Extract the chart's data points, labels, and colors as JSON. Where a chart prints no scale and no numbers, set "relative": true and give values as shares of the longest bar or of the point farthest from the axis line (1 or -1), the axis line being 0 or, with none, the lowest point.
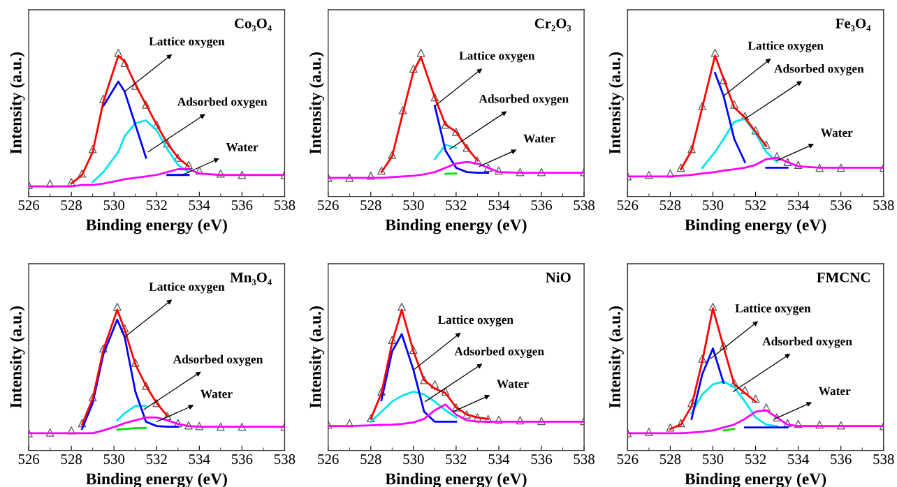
{
  "chart_data": [
    {
      "type": "line",
      "title": "Co₃O₄",
      "xlabel": "Binding energy (eV)",
      "ylabel": "Intensity (a.u.)",
      "relative": true,
      "tick_labels": "x",
      "xlim": [
        526,
        538
      ],
      "xticks": [
        526,
        528,
        530,
        532,
        534,
        536,
        538
      ],
      "grid": false,
      "legend": false,
      "x": [
        526,
        527,
        528,
        528.5,
        529,
        529.5,
        530.2,
        530.5,
        531,
        531.5,
        532,
        532.5,
        533,
        533.5,
        534,
        535,
        536,
        538
      ],
      "series": [
        {
          "type": "scatter",
          "marker": "triangle",
          "color": "#555555",
          "values": [
            0.08,
            0.09,
            0.1,
            0.16,
            0.33,
            0.68,
            1.0,
            0.93,
            0.77,
            0.64,
            0.5,
            0.37,
            0.27,
            0.22,
            0.18,
            0.16,
            0.15,
            0.15
          ]
        },
        {
          "color": "#00e5ee",
          "values": [
            null,
            null,
            null,
            null,
            0.1,
            0.17,
            0.31,
            0.42,
            0.51,
            0.53,
            0.46,
            0.33,
            0.22,
            0.17,
            null,
            null,
            null,
            null
          ]
        },
        {
          "color": "#0000ff",
          "values": [
            null,
            null,
            null,
            null,
            null,
            0.63,
            0.8,
            0.73,
            0.5,
            0.27,
            null,
            0.15,
            0.15,
            0.15,
            null,
            null,
            null,
            null
          ]
        },
        {
          "color": "#ff0000",
          "values": [
            null,
            null,
            0.09,
            0.15,
            0.31,
            0.66,
            0.98,
            0.94,
            0.78,
            0.64,
            0.5,
            0.37,
            0.27,
            0.21,
            null,
            null,
            null,
            null
          ]
        },
        {
          "color": "#ff00ff",
          "values": [
            0.07,
            0.07,
            0.07,
            0.08,
            0.08,
            0.09,
            0.11,
            0.12,
            0.13,
            0.14,
            0.15,
            0.17,
            0.19,
            0.19,
            0.16,
            0.15,
            0.15,
            0.15
          ]
        }
      ],
      "annotations": [
        {
          "text": "Lattice oxygen",
          "x": 530.5,
          "y": 0.73
        },
        {
          "text": "Adsorbed oxygen",
          "x": 531.6,
          "y": 0.31
        },
        {
          "text": "Water",
          "x": 533.2,
          "y": 0.15
        }
      ]
    },
    {
      "type": "line",
      "title": "Cr₂O₃",
      "xlabel": "Binding energy (eV)",
      "ylabel": "Intensity (a.u.)",
      "relative": true,
      "tick_labels": "x",
      "xlim": [
        526,
        538
      ],
      "xticks": [
        526,
        528,
        530,
        532,
        534,
        536,
        538
      ],
      "grid": false,
      "legend": false,
      "x": [
        526,
        527,
        528,
        528.5,
        529,
        529.5,
        530,
        530.35,
        531,
        531.5,
        532,
        532.5,
        533,
        533.5,
        534,
        535,
        536,
        538
      ],
      "series": [
        {
          "type": "scatter",
          "marker": "triangle",
          "color": "#555555",
          "values": [
            0.13,
            0.13,
            0.145,
            0.18,
            0.29,
            0.6,
            0.89,
            1.0,
            0.69,
            0.5,
            0.45,
            0.34,
            0.25,
            0.2,
            0.18,
            0.17,
            0.17,
            0.17
          ]
        },
        {
          "color": "#00dd00",
          "values": [
            null,
            null,
            null,
            null,
            null,
            null,
            null,
            null,
            null,
            0.158,
            0.16,
            null,
            null,
            null,
            null,
            null,
            null,
            null
          ]
        },
        {
          "color": "#00e5ee",
          "values": [
            null,
            null,
            null,
            null,
            null,
            null,
            null,
            null,
            0.26,
            0.36,
            0.34,
            null,
            null,
            null,
            null,
            null,
            null,
            null
          ]
        },
        {
          "color": "#0000ff",
          "values": [
            null,
            null,
            null,
            null,
            null,
            null,
            null,
            null,
            0.63,
            0.32,
            0.2,
            0.17,
            0.165,
            0.165,
            null,
            null,
            null,
            null
          ]
        },
        {
          "color": "#ff0000",
          "values": [
            null,
            null,
            null,
            0.17,
            0.28,
            0.58,
            0.87,
            0.97,
            0.69,
            0.5,
            0.45,
            0.34,
            0.25,
            null,
            null,
            null,
            null,
            null
          ]
        },
        {
          "color": "#ff00ff",
          "values": [
            0.13,
            0.13,
            0.13,
            0.13,
            0.135,
            0.14,
            0.145,
            0.15,
            0.17,
            0.2,
            0.23,
            0.24,
            0.23,
            0.2,
            0.17,
            0.165,
            0.165,
            0.165
          ]
        }
      ],
      "annotations": [
        {
          "text": "Lattice oxygen",
          "x": 531,
          "y": 0.63
        },
        {
          "text": "Adsorbed oxygen",
          "x": 531.7,
          "y": 0.33
        },
        {
          "text": "Water",
          "x": 533.1,
          "y": 0.21
        }
      ]
    },
    {
      "type": "line",
      "title": "Fe₃O₄",
      "xlabel": "Binding energy (eV)",
      "ylabel": "Intensity (a.u.)",
      "relative": true,
      "tick_labels": "x",
      "xlim": [
        526,
        538
      ],
      "xticks": [
        526,
        528,
        530,
        532,
        534,
        536,
        538
      ],
      "grid": false,
      "legend": false,
      "x": [
        526,
        527,
        528,
        528.5,
        529,
        529.5,
        530.1,
        530.5,
        531,
        531.5,
        532,
        532.5,
        533,
        533.5,
        534,
        535,
        536,
        538
      ],
      "series": [
        {
          "type": "scatter",
          "marker": "triangle",
          "color": "#555555",
          "values": [
            0.14,
            0.15,
            0.16,
            0.2,
            0.33,
            0.63,
            1.0,
            0.81,
            0.64,
            0.56,
            0.46,
            0.36,
            0.28,
            0.24,
            0.22,
            0.2,
            0.2,
            0.2
          ]
        },
        {
          "color": "#00e5ee",
          "values": [
            null,
            null,
            null,
            null,
            null,
            0.2,
            0.31,
            0.4,
            0.52,
            0.54,
            0.44,
            0.31,
            0.24,
            null,
            null,
            null,
            null,
            null
          ]
        },
        {
          "color": "#0000ff",
          "values": [
            null,
            null,
            null,
            null,
            null,
            null,
            0.86,
            0.7,
            0.4,
            0.24,
            null,
            0.2,
            0.2,
            0.2,
            null,
            null,
            null,
            null
          ]
        },
        {
          "color": "#ff0000",
          "values": [
            null,
            null,
            null,
            0.19,
            0.32,
            0.62,
            0.98,
            0.82,
            0.62,
            0.55,
            0.45,
            0.35,
            null,
            null,
            null,
            null,
            null,
            null
          ]
        },
        {
          "color": "#ff00ff",
          "values": [
            0.14,
            0.14,
            0.14,
            0.145,
            0.15,
            0.16,
            0.17,
            0.18,
            0.19,
            0.2,
            0.22,
            0.26,
            0.27,
            0.24,
            0.21,
            0.2,
            0.2,
            0.2
          ]
        }
      ],
      "annotations": [
        {
          "text": "Lattice oxygen",
          "x": 530.5,
          "y": 0.7
        },
        {
          "text": "Adsorbed oxygen",
          "x": 531.5,
          "y": 0.54
        },
        {
          "text": "Water",
          "x": 533.0,
          "y": 0.25
        }
      ]
    },
    {
      "type": "line",
      "title": "Mn₃O₄",
      "xlabel": "Binding energy (eV)",
      "ylabel": "Intensity (a.u.)",
      "relative": true,
      "tick_labels": "x",
      "xlim": [
        526,
        538
      ],
      "xticks": [
        526,
        528,
        530,
        532,
        534,
        536,
        538
      ],
      "grid": false,
      "legend": false,
      "x": [
        526,
        527,
        528,
        528.5,
        529,
        529.5,
        530.15,
        530.5,
        531,
        531.5,
        532,
        532.5,
        533,
        533.5,
        534,
        535,
        536,
        538
      ],
      "series": [
        {
          "type": "scatter",
          "marker": "triangle",
          "color": "#555555",
          "values": [
            0.12,
            0.125,
            0.14,
            0.19,
            0.37,
            0.71,
            1.0,
            0.85,
            0.61,
            0.45,
            0.33,
            0.24,
            0.19,
            0.175,
            0.17,
            0.165,
            0.165,
            0.165
          ]
        },
        {
          "color": "#00dd00",
          "values": [
            null,
            null,
            null,
            null,
            null,
            null,
            0.145,
            0.15,
            0.155,
            0.158,
            null,
            null,
            null,
            null,
            null,
            null,
            null,
            null
          ]
        },
        {
          "color": "#00e5ee",
          "values": [
            null,
            null,
            null,
            null,
            null,
            null,
            0.21,
            0.26,
            0.31,
            0.31,
            null,
            null,
            null,
            null,
            null,
            null,
            null,
            null
          ]
        },
        {
          "color": "#0000ff",
          "values": [
            null,
            null,
            null,
            0.15,
            0.33,
            0.67,
            0.91,
            0.79,
            0.41,
            0.2,
            0.17,
            0.165,
            0.165,
            null,
            null,
            null,
            null,
            null
          ]
        },
        {
          "color": "#ff0000",
          "values": [
            null,
            null,
            null,
            0.18,
            0.36,
            0.7,
            0.98,
            0.84,
            0.6,
            0.45,
            0.33,
            0.24,
            null,
            null,
            null,
            null,
            null,
            null
          ]
        },
        {
          "color": "#ff00ff",
          "values": [
            0.12,
            0.12,
            0.12,
            0.12,
            0.12,
            0.14,
            0.17,
            0.19,
            0.21,
            0.23,
            0.23,
            0.21,
            0.185,
            0.17,
            0.165,
            0.165,
            0.165,
            0.165
          ]
        }
      ],
      "annotations": [
        {
          "text": "Lattice oxygen",
          "x": 530.5,
          "y": 0.79
        },
        {
          "text": "Adsorbed oxygen",
          "x": 531.4,
          "y": 0.285
        },
        {
          "text": "Water",
          "x": 532.0,
          "y": 0.2
        }
      ]
    },
    {
      "type": "line",
      "title": "NiO",
      "xlabel": "Binding energy (eV)",
      "ylabel": "Intensity (a.u.)",
      "relative": true,
      "tick_labels": "x",
      "xlim": [
        526,
        538
      ],
      "xticks": [
        526,
        528,
        530,
        532,
        534,
        536,
        538
      ],
      "grid": false,
      "legend": false,
      "x": [
        526,
        527,
        528,
        528.5,
        529,
        529.45,
        530,
        530.5,
        531,
        531.5,
        532,
        532.5,
        533,
        533.5,
        534,
        535,
        536,
        538
      ],
      "series": [
        {
          "type": "scatter",
          "marker": "triangle",
          "color": "#555555",
          "values": [
            0.18,
            0.19,
            0.225,
            0.41,
            0.77,
            1.0,
            0.7,
            0.49,
            0.46,
            0.41,
            0.3,
            0.25,
            0.23,
            0.22,
            0.215,
            0.21,
            0.205,
            0.205
          ]
        },
        {
          "color": "#00e5ee",
          "values": [
            null,
            null,
            0.2,
            0.27,
            0.34,
            0.38,
            0.41,
            0.39,
            0.34,
            0.28,
            0.23,
            null,
            null,
            null,
            null,
            null,
            null,
            null
          ]
        },
        {
          "color": "#0000ff",
          "values": [
            null,
            null,
            null,
            0.35,
            0.69,
            0.81,
            0.56,
            0.27,
            0.2,
            0.2,
            0.2,
            null,
            null,
            null,
            null,
            null,
            null,
            null
          ]
        },
        {
          "color": "#ff0000",
          "values": [
            null,
            null,
            0.22,
            0.4,
            0.75,
            0.98,
            0.69,
            0.49,
            0.43,
            0.4,
            0.3,
            0.25,
            0.23,
            0.22,
            null,
            null,
            null,
            null
          ]
        },
        {
          "color": "#ff00ff",
          "values": [
            0.17,
            0.17,
            0.175,
            0.178,
            0.18,
            0.185,
            0.195,
            0.22,
            0.28,
            0.32,
            0.25,
            0.21,
            0.2,
            0.2,
            0.2,
            0.2,
            0.2,
            0.2
          ]
        }
      ],
      "annotations": [
        {
          "text": "Lattice oxygen",
          "x": 530,
          "y": 0.56
        },
        {
          "text": "Adsorbed oxygen",
          "x": 530.55,
          "y": 0.34
        },
        {
          "text": "Water",
          "x": 531.85,
          "y": 0.27
        }
      ]
    },
    {
      "type": "line",
      "title": "FMCNC",
      "xlabel": "Binding energy (eV)",
      "ylabel": "Intensity (a.u.)",
      "relative": true,
      "tick_labels": "x",
      "xlim": [
        526,
        538
      ],
      "xticks": [
        526,
        528,
        530,
        532,
        534,
        536,
        538
      ],
      "grid": false,
      "legend": false,
      "x": [
        526,
        527,
        528,
        528.5,
        529,
        529.5,
        530,
        530.5,
        531,
        531.5,
        532,
        532.5,
        533,
        533.5,
        534,
        535,
        536,
        538
      ],
      "series": [
        {
          "type": "scatter",
          "marker": "triangle",
          "color": "#555555",
          "values": [
            0.12,
            0.13,
            0.16,
            0.19,
            0.33,
            0.64,
            1.0,
            0.73,
            0.47,
            0.42,
            0.36,
            0.3,
            0.23,
            0.19,
            0.185,
            0.18,
            0.175,
            0.17
          ]
        },
        {
          "color": "#00dd00",
          "values": [
            null,
            null,
            null,
            null,
            null,
            null,
            null,
            0.14,
            0.15,
            null,
            null,
            null,
            null,
            null,
            null,
            null,
            null,
            null
          ]
        },
        {
          "color": "#00e5ee",
          "values": [
            null,
            null,
            null,
            null,
            0.26,
            0.39,
            0.46,
            0.48,
            0.44,
            0.34,
            0.23,
            0.18,
            0.17,
            null,
            null,
            null,
            null,
            null
          ]
        },
        {
          "color": "#0000ff",
          "values": [
            null,
            null,
            null,
            null,
            0.22,
            0.53,
            0.71,
            0.47,
            null,
            0.16,
            0.16,
            0.16,
            0.16,
            0.16,
            null,
            null,
            null,
            null
          ]
        },
        {
          "color": "#ff0000",
          "values": [
            null,
            null,
            0.15,
            0.18,
            0.31,
            0.62,
            0.99,
            0.72,
            0.46,
            0.4,
            0.34,
            null,
            null,
            null,
            null,
            null,
            null,
            null
          ]
        },
        {
          "color": "#ff00ff",
          "values": [
            0.12,
            0.12,
            0.12,
            0.12,
            0.125,
            0.13,
            0.14,
            0.16,
            0.18,
            0.22,
            0.27,
            0.28,
            0.23,
            0.18,
            0.17,
            0.17,
            0.17,
            0.17
          ]
        }
      ],
      "annotations": [
        {
          "text": "Lattice oxygen",
          "x": 529.9,
          "y": 0.64
        },
        {
          "text": "Adsorbed oxygen",
          "x": 530.95,
          "y": 0.41
        },
        {
          "text": "Water",
          "x": 532.9,
          "y": 0.22
        }
      ]
    }
  ]
}
